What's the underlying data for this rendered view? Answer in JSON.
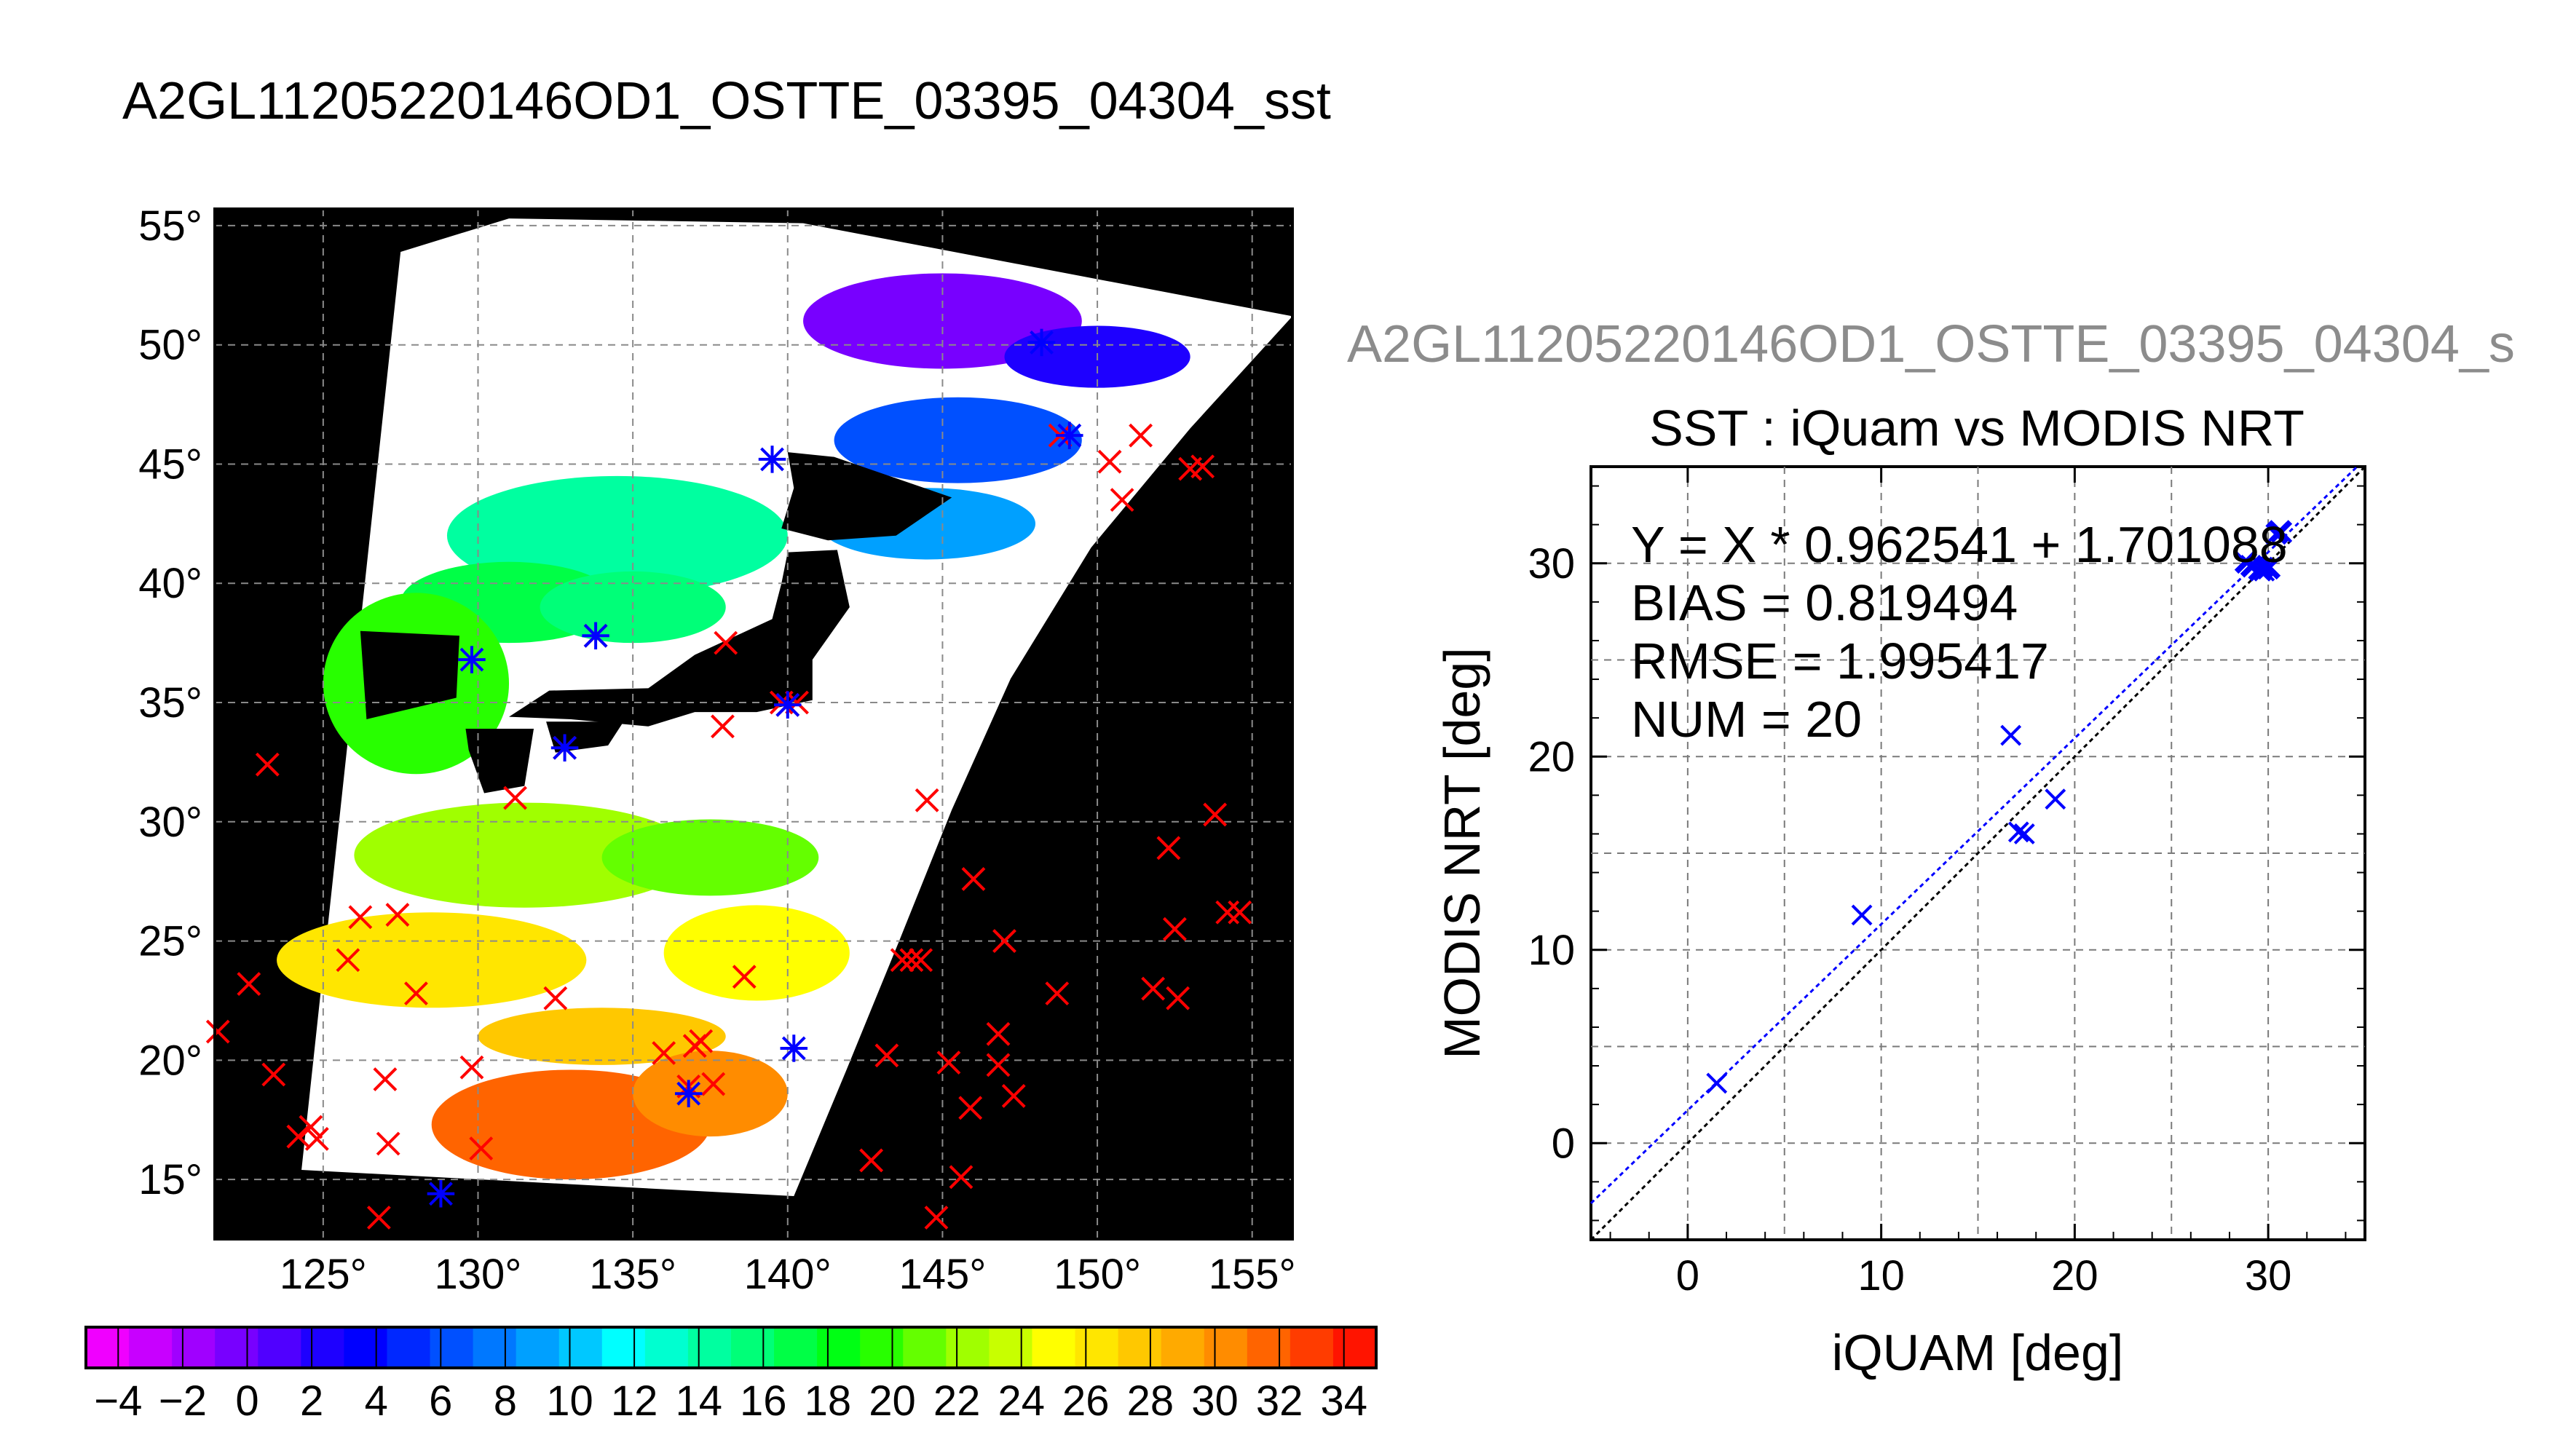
{
  "page": {
    "title": "A2GL11205220146OD1_OSTTE_03395_04304_sst",
    "subtitle": "A2GL11205220146OD1_OSTTE_03395_04304_s"
  },
  "colors": {
    "map_background": "#000000",
    "land_cloud": "#ffffff",
    "iquam_marker": "#ff0000",
    "matched_marker": "#0000ff",
    "fit_line": "#0000ff",
    "identity_line": "#000000"
  },
  "chart_data": [
    {
      "type": "heatmap",
      "name": "SST map",
      "x_ticks": [
        "125°",
        "130°",
        "135°",
        "140°",
        "145°",
        "150°",
        "155°"
      ],
      "y_ticks": [
        "15°",
        "20°",
        "25°",
        "30°",
        "35°",
        "40°",
        "45°",
        "50°",
        "55°"
      ],
      "xlim": [
        121.5,
        156.3
      ],
      "ylim": [
        12.5,
        55.7
      ],
      "grid": true,
      "colorbar": {
        "range": [
          -5,
          35
        ],
        "tick_labels": [
          "−4",
          "−2",
          "0",
          "2",
          "4",
          "6",
          "8",
          "10",
          "12",
          "14",
          "16",
          "18",
          "20",
          "22",
          "24",
          "26",
          "28",
          "30",
          "32",
          "34"
        ],
        "colors": [
          "#f000ff",
          "#c800ff",
          "#a000ff",
          "#7800ff",
          "#5000ff",
          "#1e00ff",
          "#0000ff",
          "#0028ff",
          "#0050ff",
          "#0078ff",
          "#00a0ff",
          "#00c8ff",
          "#00ffff",
          "#00ffd0",
          "#00ffa0",
          "#00ff78",
          "#00ff46",
          "#00ff14",
          "#28ff00",
          "#64ff00",
          "#a0ff00",
          "#c8ff00",
          "#ffff00",
          "#ffe600",
          "#ffc800",
          "#ffaa00",
          "#ff8c00",
          "#ff6400",
          "#ff3c00",
          "#ff1400"
        ]
      },
      "iquam_points": [
        [
          121.6,
          21.2
        ],
        [
          122.6,
          23.2
        ],
        [
          123.2,
          32.4
        ],
        [
          123.4,
          19.4
        ],
        [
          124.2,
          16.8
        ],
        [
          124.6,
          17.2
        ],
        [
          124.8,
          16.7
        ],
        [
          125.8,
          24.2
        ],
        [
          126.2,
          26.0
        ],
        [
          126.8,
          13.4
        ],
        [
          127.0,
          19.2
        ],
        [
          127.1,
          16.5
        ],
        [
          127.4,
          26.1
        ],
        [
          128.0,
          22.8
        ],
        [
          129.8,
          19.7
        ],
        [
          130.1,
          16.3
        ],
        [
          131.2,
          31.0
        ],
        [
          132.5,
          22.6
        ],
        [
          132.8,
          33.1
        ],
        [
          133.8,
          37.8
        ],
        [
          136.0,
          20.3
        ],
        [
          136.8,
          18.9
        ],
        [
          137.0,
          20.6
        ],
        [
          137.2,
          20.8
        ],
        [
          137.6,
          19.0
        ],
        [
          137.9,
          34.0
        ],
        [
          138.0,
          37.5
        ],
        [
          138.6,
          23.5
        ],
        [
          139.8,
          35.0
        ],
        [
          140.0,
          34.9
        ],
        [
          140.3,
          35.0
        ],
        [
          142.7,
          15.8
        ],
        [
          143.2,
          20.2
        ],
        [
          143.7,
          24.2
        ],
        [
          144.0,
          24.2
        ],
        [
          144.3,
          24.2
        ],
        [
          144.5,
          30.9
        ],
        [
          144.8,
          13.4
        ],
        [
          145.2,
          19.9
        ],
        [
          145.6,
          15.1
        ],
        [
          145.9,
          18.0
        ],
        [
          146.0,
          27.6
        ],
        [
          146.8,
          21.1
        ],
        [
          146.8,
          19.8
        ],
        [
          147.0,
          25.0
        ],
        [
          147.3,
          18.5
        ],
        [
          148.7,
          22.8
        ],
        [
          150.4,
          45.1
        ],
        [
          150.8,
          43.5
        ],
        [
          151.4,
          46.2
        ],
        [
          151.8,
          23.0
        ],
        [
          152.3,
          28.9
        ],
        [
          152.5,
          25.5
        ],
        [
          152.6,
          22.6
        ],
        [
          153.0,
          44.8
        ],
        [
          153.4,
          44.9
        ],
        [
          153.8,
          30.3
        ],
        [
          154.2,
          26.2
        ],
        [
          154.6,
          26.2
        ],
        [
          148.8,
          46.2
        ]
      ],
      "matched_points": [
        [
          139.5,
          45.2
        ],
        [
          133.8,
          37.8
        ],
        [
          129.8,
          36.8
        ],
        [
          132.8,
          33.1
        ],
        [
          140.2,
          20.5
        ],
        [
          136.8,
          18.6
        ],
        [
          128.8,
          14.4
        ],
        [
          148.2,
          50.1
        ],
        [
          149.1,
          46.2
        ],
        [
          140.0,
          34.9
        ]
      ]
    },
    {
      "type": "scatter",
      "title": "SST : iQuam vs MODIS NRT",
      "xlabel": "iQUAM [deg]",
      "ylabel": "MODIS NRT [deg]",
      "xlim": [
        -5,
        35
      ],
      "ylim": [
        -5,
        35
      ],
      "x_ticks": [
        "0",
        "10",
        "20",
        "30"
      ],
      "y_ticks": [
        "0",
        "10",
        "20",
        "30"
      ],
      "grid": true,
      "stats": {
        "fit": "Y = X * 0.962541 + 1.701088",
        "bias": "BIAS = 0.819494",
        "rmse": "RMSE = 1.995417",
        "num": "NUM = 20"
      },
      "fit": {
        "slope": 0.962541,
        "intercept": 1.701088
      },
      "points": [
        [
          1.5,
          3.1
        ],
        [
          9.0,
          11.8
        ],
        [
          16.7,
          21.1
        ],
        [
          17.1,
          16.1
        ],
        [
          17.4,
          16.0
        ],
        [
          19.0,
          17.8
        ],
        [
          28.9,
          30.0
        ],
        [
          29.2,
          29.8
        ],
        [
          29.5,
          29.7
        ],
        [
          29.8,
          29.6
        ],
        [
          30.0,
          29.7
        ],
        [
          29.7,
          29.8
        ],
        [
          30.5,
          31.6
        ],
        [
          30.6,
          31.7
        ],
        [
          30.4,
          31.5
        ],
        [
          30.7,
          31.6
        ],
        [
          29.1,
          29.9
        ],
        [
          28.8,
          30.1
        ],
        [
          29.6,
          29.6
        ],
        [
          30.1,
          29.8
        ]
      ]
    }
  ]
}
